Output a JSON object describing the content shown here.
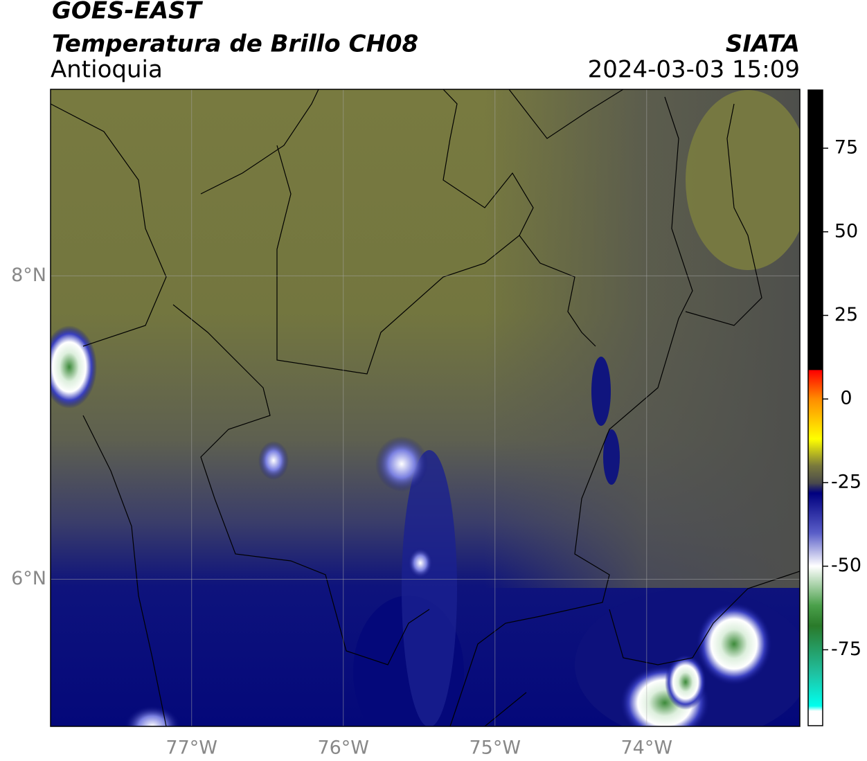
{
  "header": {
    "title": "GOES-EAST",
    "subtitle": "Temperatura de Brillo CH08",
    "source": "SIATA",
    "region": "Antioquia",
    "timestamp": "2024-03-03 15:09"
  },
  "map": {
    "xlim": [
      -77.93,
      -72.99
    ],
    "ylim": [
      5.03,
      9.23
    ],
    "xticks": [
      {
        "value": -77,
        "label": "77°W"
      },
      {
        "value": -76,
        "label": "76°W"
      },
      {
        "value": -75,
        "label": "75°W"
      },
      {
        "value": -74,
        "label": "74°W"
      }
    ],
    "yticks": [
      {
        "value": 8,
        "label": "8°N"
      },
      {
        "value": 6,
        "label": "6°N"
      }
    ],
    "grid": true
  },
  "colorbar": {
    "lim": [
      -97.7,
      92.4
    ],
    "ticks": [
      75,
      50,
      25,
      0,
      -25,
      -50,
      -75
    ]
  }
}
